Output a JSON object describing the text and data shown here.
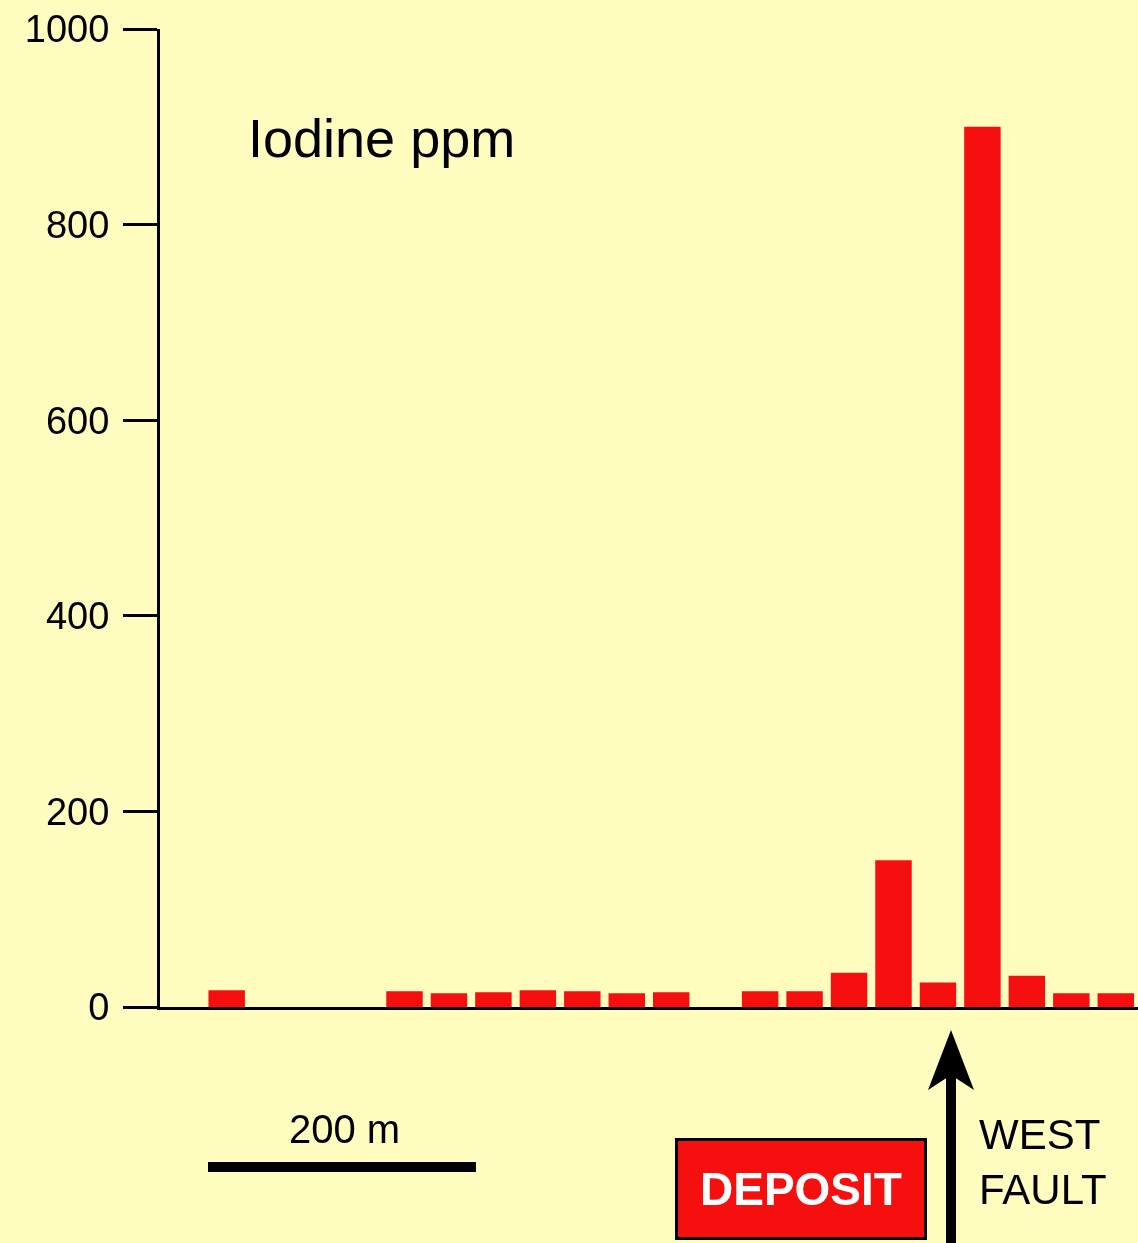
{
  "chart_data": {
    "type": "bar",
    "title": "Iodine ppm",
    "categories": [
      null,
      null,
      null,
      null,
      null,
      null,
      null,
      null,
      null,
      null,
      null,
      null,
      null,
      null,
      null,
      null,
      null,
      null,
      null,
      null,
      null,
      null
    ],
    "values": [
      null,
      17,
      null,
      null,
      null,
      16,
      14,
      15,
      17,
      16,
      14,
      15,
      null,
      16,
      16,
      35,
      150,
      25,
      900,
      32,
      14,
      14
    ],
    "color": "#f50f0f",
    "ylim": [
      0,
      1000
    ],
    "yticks": [
      0,
      200,
      400,
      600,
      800,
      1000
    ],
    "grid": false,
    "legend": false,
    "tick_labels": "y",
    "annotations": [
      "200 m",
      "DEPOSIT",
      "WEST FAULT"
    ]
  }
}
